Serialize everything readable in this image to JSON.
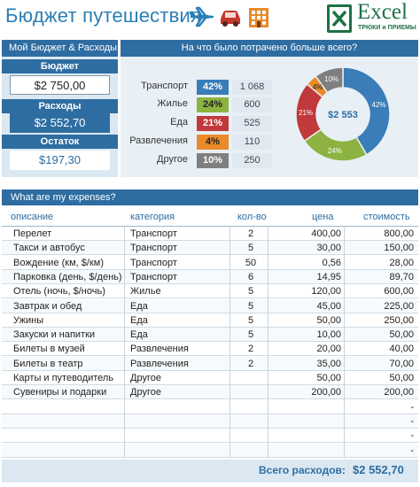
{
  "header": {
    "title": "Бюджет путешествия",
    "logo_brand": "Excel",
    "logo_sub": "ТРЮКИ и ПРИЕМЫ"
  },
  "budget_panel": {
    "heading": "Мой Бюджет & Расходы",
    "budget_label": "Бюджет",
    "budget_value": "$2 750,00",
    "spent_label": "Расходы",
    "spent_value": "$2 552,70",
    "left_label": "Остаток",
    "left_value": "$197,30"
  },
  "categories_panel": {
    "heading": "На что было потрачено больше всего?",
    "center_value": "$2 553",
    "items": [
      {
        "label": "Транспорт",
        "pct": "42%",
        "amount": "1 068",
        "color": "#3a7db8"
      },
      {
        "label": "Жилье",
        "pct": "24%",
        "amount": "600",
        "color": "#8cb341"
      },
      {
        "label": "Еда",
        "pct": "21%",
        "amount": "525",
        "color": "#c0393b"
      },
      {
        "label": "Развлечения",
        "pct": "4%",
        "amount": "110",
        "color": "#ea8a2b"
      },
      {
        "label": "Другое",
        "pct": "10%",
        "amount": "250",
        "color": "#7f7f7f"
      }
    ]
  },
  "chart_data": {
    "type": "pie",
    "categories": [
      "Транспорт",
      "Жилье",
      "Еда",
      "Развлечения",
      "Другое"
    ],
    "values": [
      42,
      24,
      21,
      4,
      10
    ],
    "labels": [
      "42%",
      "24%",
      "21%",
      "4%",
      "10%"
    ],
    "colors": [
      "#3a7db8",
      "#8cb341",
      "#c0393b",
      "#ea8a2b",
      "#7f7f7f"
    ],
    "center_label": "$2 553"
  },
  "expenses": {
    "heading": "What are my expenses?",
    "columns": [
      "описание",
      "категория",
      "кол-во",
      "цена",
      "стоимость"
    ],
    "rows": [
      [
        "Перелет",
        "Транспорт",
        "2",
        "400,00",
        "800,00"
      ],
      [
        "Такси и автобус",
        "Транспорт",
        "5",
        "30,00",
        "150,00"
      ],
      [
        "Вождение (км, $/км)",
        "Транспорт",
        "50",
        "0,56",
        "28,00"
      ],
      [
        "Парковка (день, $/день)",
        "Транспорт",
        "6",
        "14,95",
        "89,70"
      ],
      [
        "Отель (ночь, $/ночь)",
        "Жилье",
        "5",
        "120,00",
        "600,00"
      ],
      [
        "Завтрак и обед",
        "Еда",
        "5",
        "45,00",
        "225,00"
      ],
      [
        "Ужины",
        "Еда",
        "5",
        "50,00",
        "250,00"
      ],
      [
        "Закуски и напитки",
        "Еда",
        "5",
        "10,00",
        "50,00"
      ],
      [
        "Билеты в музей",
        "Развлечения",
        "2",
        "20,00",
        "40,00"
      ],
      [
        "Билеты в театр",
        "Развлечения",
        "2",
        "35,00",
        "70,00"
      ],
      [
        "Карты и путеводитель",
        "Другое",
        "",
        "50,00",
        "50,00"
      ],
      [
        "Сувениры и подарки",
        "Другое",
        "",
        "200,00",
        "200,00"
      ],
      [
        "",
        "",
        "",
        "",
        "-"
      ],
      [
        "",
        "",
        "",
        "",
        "-"
      ],
      [
        "",
        "",
        "",
        "",
        "-"
      ],
      [
        "",
        "",
        "",
        "",
        "-"
      ]
    ],
    "total_label": "Всего расходов:",
    "total_value": "$2 552,70"
  }
}
